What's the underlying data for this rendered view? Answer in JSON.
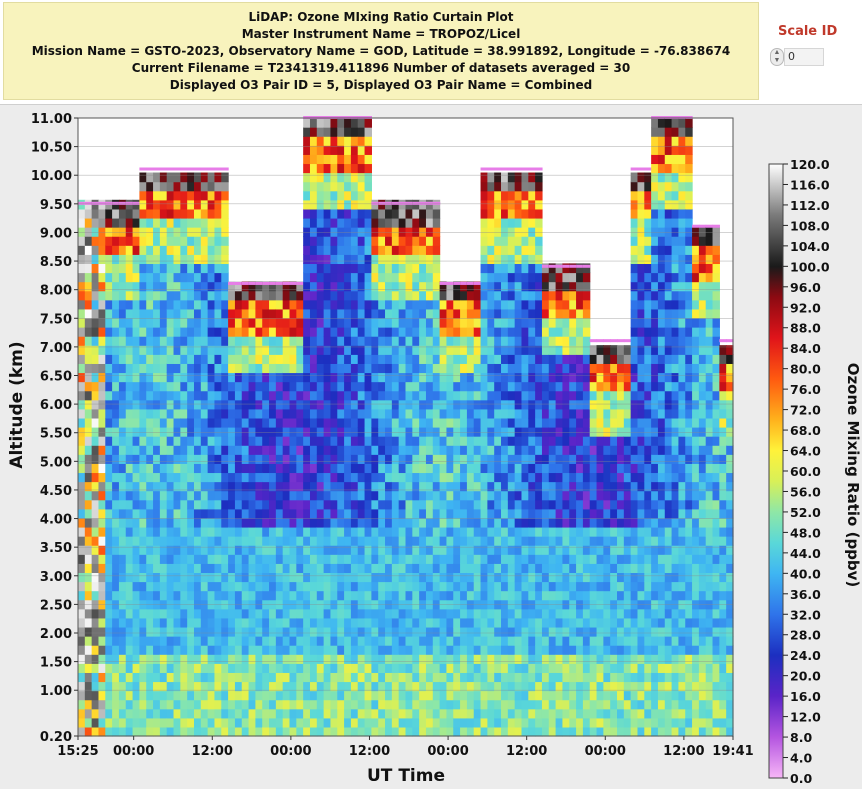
{
  "header": {
    "line1": "LiDAP: Ozone MIxing Ratio Curtain Plot",
    "line2": "Master Instrument Name = TROPOZ/Licel",
    "line3": "Mission Name = GSTO-2023,   Observatory Name = GOD,   Latitude = 38.991892,   Longitude = -76.838674",
    "line4": "Current Filename = T2341319.411896   Number of datasets averaged =  30",
    "line5": "Displayed O3 Pair ID = 5, Displayed O3 Pair Name = Combined"
  },
  "scale_control": {
    "label": "Scale ID",
    "value": "0"
  },
  "colors": {
    "header_bg": "#f8f3bd",
    "scale_label": "#c0392b",
    "panel_bg": "#ececec"
  },
  "chart_data": {
    "type": "heatmap",
    "title": "LiDAP: Ozone MIxing Ratio Curtain Plot",
    "xlabel": "UT Time",
    "ylabel": "Altitude (km)",
    "colorbar_label": "Ozone Mixing Ratio (ppbv)",
    "x_ticks": [
      "15:25",
      "00:00",
      "12:00",
      "00:00",
      "12:00",
      "00:00",
      "12:00",
      "00:00",
      "12:00",
      "19:41"
    ],
    "y_ticks": [
      "11.00",
      "10.50",
      "10.00",
      "9.50",
      "9.00",
      "8.50",
      "8.00",
      "7.50",
      "7.00",
      "6.50",
      "6.00",
      "5.50",
      "5.00",
      "4.50",
      "4.00",
      "3.50",
      "3.00",
      "2.50",
      "2.00",
      "1.50",
      "1.00",
      "0.20"
    ],
    "y_values": [
      11.0,
      10.5,
      10.0,
      9.5,
      9.0,
      8.5,
      8.0,
      7.5,
      7.0,
      6.5,
      6.0,
      5.5,
      5.0,
      4.5,
      4.0,
      3.5,
      3.0,
      2.5,
      2.0,
      1.5,
      1.0,
      0.2
    ],
    "ylim": [
      0.2,
      11.0
    ],
    "colorbar_ticks": [
      "120.0",
      "116.0",
      "112.0",
      "108.0",
      "104.0",
      "100.0",
      "96.0",
      "92.0",
      "88.0",
      "84.0",
      "80.0",
      "76.0",
      "72.0",
      "68.0",
      "64.0",
      "60.0",
      "56.0",
      "52.0",
      "48.0",
      "44.0",
      "40.0",
      "36.0",
      "32.0",
      "28.0",
      "24.0",
      "20.0",
      "16.0",
      "12.0",
      "8.0",
      "4.0",
      "0.0"
    ],
    "colorbar_range": [
      0.0,
      120.0
    ],
    "colormap": [
      [
        0,
        "#f7b6f7"
      ],
      [
        8,
        "#b455e0"
      ],
      [
        16,
        "#5a24c8"
      ],
      [
        24,
        "#1c2fc0"
      ],
      [
        32,
        "#2f74ea"
      ],
      [
        40,
        "#3fb6f2"
      ],
      [
        46,
        "#5ad8d8"
      ],
      [
        52,
        "#8fe7a6"
      ],
      [
        58,
        "#d8f058"
      ],
      [
        64,
        "#fff23a"
      ],
      [
        70,
        "#ffb21c"
      ],
      [
        78,
        "#ff5a10"
      ],
      [
        86,
        "#e0141a"
      ],
      [
        94,
        "#8c0a12"
      ],
      [
        100,
        "#1a1a1a"
      ],
      [
        110,
        "#7a7a7a"
      ],
      [
        120,
        "#ffffff"
      ]
    ],
    "data_top_km": [
      9.5,
      10.1,
      8.1,
      11.0,
      9.5,
      8.1,
      10.1,
      8.4,
      7.1,
      10.1,
      11.0,
      9.1,
      7.1
    ],
    "time_segments_x": [
      0.0,
      0.097,
      0.234,
      0.346,
      0.448,
      0.553,
      0.613,
      0.706,
      0.778,
      0.839,
      0.872,
      0.936,
      0.978,
      1.0
    ]
  }
}
